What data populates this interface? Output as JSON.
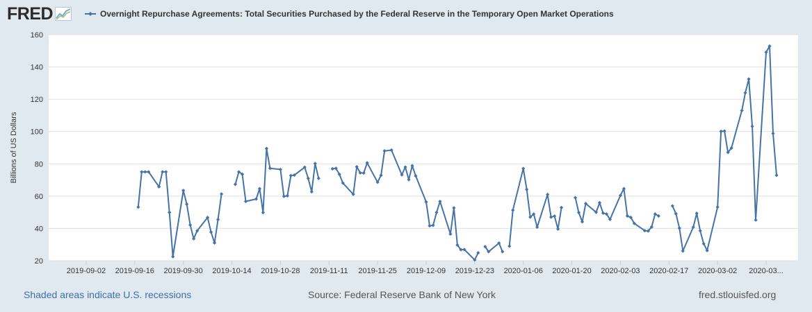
{
  "logo": {
    "text": "FRED"
  },
  "colors": {
    "series": "#4572a7",
    "background": "#e1e9f0",
    "plot_bg": "#ffffff",
    "grid": "#e0e0e0",
    "link": "#3a6fa8"
  },
  "footer": {
    "recession_note": "Shaded areas indicate U.S. recessions",
    "source": "Source: Federal Reserve Bank of New York",
    "site": "fred.stlouisfed.org"
  },
  "chart_data": {
    "type": "line",
    "title": "Overnight Repurchase Agreements: Total Securities Purchased by the Federal Reserve in the Temporary Open Market Operations",
    "xlabel": "",
    "ylabel": "Billions of US Dollars",
    "ylim": [
      20,
      160
    ],
    "yticks": [
      20,
      40,
      60,
      80,
      100,
      120,
      140,
      160
    ],
    "grid": true,
    "legend": "top-left",
    "x_range": [
      "2019-08-27",
      "2020-03-18"
    ],
    "x_ticks": [
      {
        "date": "2019-09-02",
        "label": "2019-09-02"
      },
      {
        "date": "2019-09-16",
        "label": "2019-09-16"
      },
      {
        "date": "2019-09-30",
        "label": "2019-09-30"
      },
      {
        "date": "2019-10-14",
        "label": "2019-10-14"
      },
      {
        "date": "2019-10-28",
        "label": "2019-10-28"
      },
      {
        "date": "2019-11-11",
        "label": "2019-11-11"
      },
      {
        "date": "2019-11-25",
        "label": "2019-11-25"
      },
      {
        "date": "2019-12-09",
        "label": "2019-12-09"
      },
      {
        "date": "2019-12-23",
        "label": "2019-12-23"
      },
      {
        "date": "2020-01-06",
        "label": "2020-01-06"
      },
      {
        "date": "2020-01-20",
        "label": "2020-01-20"
      },
      {
        "date": "2020-02-03",
        "label": "2020-02-03"
      },
      {
        "date": "2020-02-17",
        "label": "2020-02-17"
      },
      {
        "date": "2020-03-02",
        "label": "2020-03-02"
      },
      {
        "date": "2020-03-16",
        "label": "2020-03..."
      }
    ],
    "series": [
      {
        "name": "Overnight Repurchase Agreements: Total Securities Purchased by the Federal Reserve in the Temporary Open Market Operations",
        "segments": [
          [
            [
              "2019-09-17",
              53.2
            ],
            [
              "2019-09-18",
              75.0
            ],
            [
              "2019-09-19",
              75.0
            ],
            [
              "2019-09-20",
              75.0
            ],
            [
              "2019-09-23",
              65.8
            ],
            [
              "2019-09-24",
              75.0
            ],
            [
              "2019-09-25",
              75.0
            ],
            [
              "2019-09-26",
              49.9
            ],
            [
              "2019-09-27",
              22.5
            ],
            [
              "2019-09-30",
              63.5
            ],
            [
              "2019-10-01",
              55.0
            ],
            [
              "2019-10-02",
              42.1
            ],
            [
              "2019-10-03",
              33.6
            ],
            [
              "2019-10-04",
              38.5
            ],
            [
              "2019-10-07",
              46.8
            ],
            [
              "2019-10-08",
              37.7
            ],
            [
              "2019-10-09",
              31.0
            ],
            [
              "2019-10-10",
              45.5
            ],
            [
              "2019-10-11",
              61.3
            ]
          ],
          [
            [
              "2019-10-15",
              67.3
            ],
            [
              "2019-10-16",
              75.0
            ],
            [
              "2019-10-17",
              73.6
            ],
            [
              "2019-10-18",
              56.7
            ],
            [
              "2019-10-21",
              58.2
            ],
            [
              "2019-10-22",
              64.6
            ],
            [
              "2019-10-23",
              49.8
            ],
            [
              "2019-10-24",
              89.5
            ],
            [
              "2019-10-25",
              77.2
            ],
            [
              "2019-10-28",
              76.5
            ],
            [
              "2019-10-29",
              59.9
            ],
            [
              "2019-10-30",
              60.2
            ],
            [
              "2019-10-31",
              72.7
            ],
            [
              "2019-11-01",
              73.0
            ],
            [
              "2019-11-04",
              77.9
            ],
            [
              "2019-11-05",
              71.0
            ],
            [
              "2019-11-06",
              62.7
            ],
            [
              "2019-11-07",
              80.2
            ],
            [
              "2019-11-08",
              71.0
            ]
          ],
          [
            [
              "2019-11-12",
              76.9
            ],
            [
              "2019-11-13",
              77.2
            ],
            [
              "2019-11-14",
              73.5
            ],
            [
              "2019-11-15",
              68.1
            ],
            [
              "2019-11-18",
              61.1
            ],
            [
              "2019-11-19",
              78.2
            ],
            [
              "2019-11-20",
              74.4
            ],
            [
              "2019-11-21",
              74.3
            ],
            [
              "2019-11-22",
              80.6
            ],
            [
              "2019-11-25",
              68.6
            ],
            [
              "2019-11-26",
              72.9
            ],
            [
              "2019-11-27",
              88.0
            ],
            [
              "2019-11-29",
              88.5
            ],
            [
              "2019-12-02",
              73.2
            ],
            [
              "2019-12-03",
              78.0
            ],
            [
              "2019-12-04",
              70.2
            ],
            [
              "2019-12-05",
              78.8
            ],
            [
              "2019-12-06",
              72.5
            ],
            [
              "2019-12-09",
              56.4
            ],
            [
              "2019-12-10",
              41.6
            ],
            [
              "2019-12-11",
              41.9
            ],
            [
              "2019-12-12",
              49.9
            ],
            [
              "2019-12-13",
              56.7
            ],
            [
              "2019-12-16",
              36.5
            ],
            [
              "2019-12-17",
              52.7
            ],
            [
              "2019-12-18",
              29.7
            ],
            [
              "2019-12-19",
              26.8
            ],
            [
              "2019-12-20",
              26.9
            ],
            [
              "2019-12-23",
              20.5
            ],
            [
              "2019-12-24",
              24.9
            ]
          ],
          [
            [
              "2019-12-26",
              28.7
            ],
            [
              "2019-12-27",
              25.6
            ],
            [
              "2019-12-30",
              30.9
            ],
            [
              "2019-12-31",
              25.6
            ]
          ],
          [
            [
              "2020-01-02",
              29.0
            ],
            [
              "2020-01-03",
              51.3
            ],
            [
              "2020-01-06",
              77.1
            ],
            [
              "2020-01-07",
              64.1
            ],
            [
              "2020-01-08",
              47.0
            ],
            [
              "2020-01-09",
              48.9
            ],
            [
              "2020-01-10",
              40.8
            ],
            [
              "2020-01-13",
              61.0
            ],
            [
              "2020-01-14",
              47.0
            ],
            [
              "2020-01-15",
              47.6
            ],
            [
              "2020-01-16",
              39.6
            ],
            [
              "2020-01-17",
              52.9
            ]
          ],
          [
            [
              "2020-01-21",
              59.0
            ],
            [
              "2020-01-22",
              49.8
            ],
            [
              "2020-01-23",
              44.1
            ],
            [
              "2020-01-24",
              55.4
            ],
            [
              "2020-01-27",
              50.0
            ],
            [
              "2020-01-28",
              55.9
            ],
            [
              "2020-01-29",
              49.5
            ],
            [
              "2020-01-30",
              48.9
            ],
            [
              "2020-01-31",
              45.6
            ],
            [
              "2020-02-03",
              60.4
            ],
            [
              "2020-02-04",
              64.6
            ],
            [
              "2020-02-05",
              47.7
            ],
            [
              "2020-02-06",
              46.8
            ],
            [
              "2020-02-07",
              43.1
            ],
            [
              "2020-02-10",
              38.6
            ],
            [
              "2020-02-11",
              38.4
            ],
            [
              "2020-02-12",
              40.9
            ],
            [
              "2020-02-13",
              48.9
            ],
            [
              "2020-02-14",
              47.7
            ]
          ],
          [
            [
              "2020-02-18",
              53.9
            ],
            [
              "2020-02-19",
              49.1
            ],
            [
              "2020-02-20",
              40.2
            ],
            [
              "2020-02-21",
              26.0
            ],
            [
              "2020-02-24",
              40.8
            ],
            [
              "2020-02-25",
              49.3
            ],
            [
              "2020-02-26",
              38.5
            ],
            [
              "2020-02-27",
              30.5
            ],
            [
              "2020-02-28",
              26.3
            ],
            [
              "2020-03-02",
              53.2
            ],
            [
              "2020-03-03",
              100.1
            ],
            [
              "2020-03-04",
              100.3
            ],
            [
              "2020-03-05",
              87.1
            ],
            [
              "2020-03-06",
              89.8
            ],
            [
              "2020-03-09",
              113.0
            ],
            [
              "2020-03-10",
              124.0
            ],
            [
              "2020-03-11",
              132.5
            ],
            [
              "2020-03-12",
              103.2
            ],
            [
              "2020-03-13",
              45.2
            ],
            [
              "2020-03-16",
              149.1
            ],
            [
              "2020-03-17",
              152.9
            ],
            [
              "2020-03-18",
              98.8
            ],
            [
              "2020-03-19",
              72.9
            ]
          ]
        ]
      }
    ]
  }
}
